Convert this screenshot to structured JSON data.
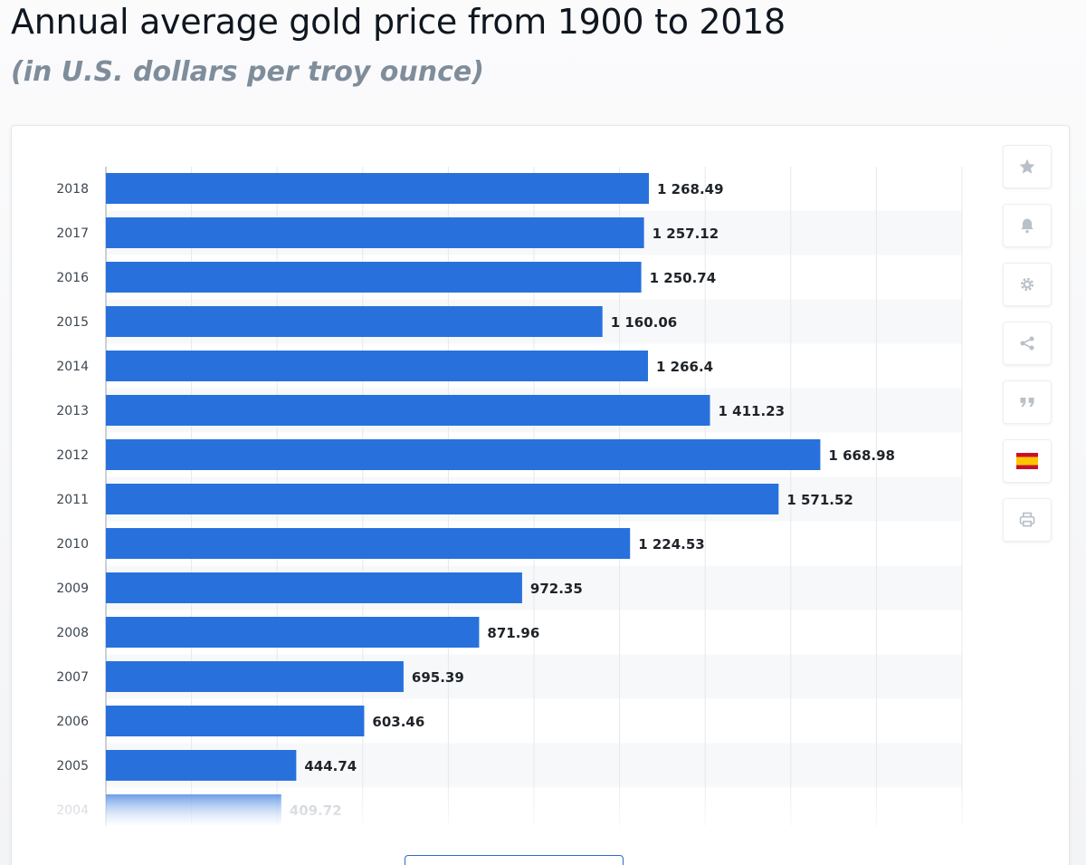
{
  "header": {
    "title": "Annual average gold price from 1900 to 2018",
    "subtitle": "(in U.S. dollars per troy ounce)"
  },
  "toolbar": {
    "items": [
      {
        "icon": "star-icon"
      },
      {
        "icon": "bell-icon"
      },
      {
        "icon": "gear-icon"
      },
      {
        "icon": "share-icon"
      },
      {
        "icon": "quote-icon"
      },
      {
        "icon": "spain-flag-icon"
      },
      {
        "icon": "print-icon"
      }
    ]
  },
  "colors": {
    "bar": "#2871dd",
    "grid": "#e6e8eb",
    "stripe": "#f7f8f9",
    "label": "#1f2328",
    "tick": "#3d4650"
  },
  "chart_data": {
    "type": "bar",
    "orientation": "horizontal",
    "categories": [
      "2018",
      "2017",
      "2016",
      "2015",
      "2014",
      "2013",
      "2012",
      "2011",
      "2010",
      "2009",
      "2008",
      "2007",
      "2006",
      "2005",
      "2004"
    ],
    "values": [
      1268.49,
      1257.12,
      1250.74,
      1160.06,
      1266.4,
      1411.23,
      1668.98,
      1571.52,
      1224.53,
      972.35,
      871.96,
      695.39,
      603.46,
      444.74,
      409.72
    ],
    "value_labels": [
      "1 268.49",
      "1 257.12",
      "1 250.74",
      "1 160.06",
      "1 266.4",
      "1 411.23",
      "1 668.98",
      "1 571.52",
      "1 224.53",
      "972.35",
      "871.96",
      "695.39",
      "603.46",
      "444.74",
      "409.72"
    ],
    "title": "Annual average gold price from 1900 to 2018",
    "xlabel": "",
    "ylabel": "",
    "xlim": [
      0,
      2000
    ],
    "grid": true
  }
}
